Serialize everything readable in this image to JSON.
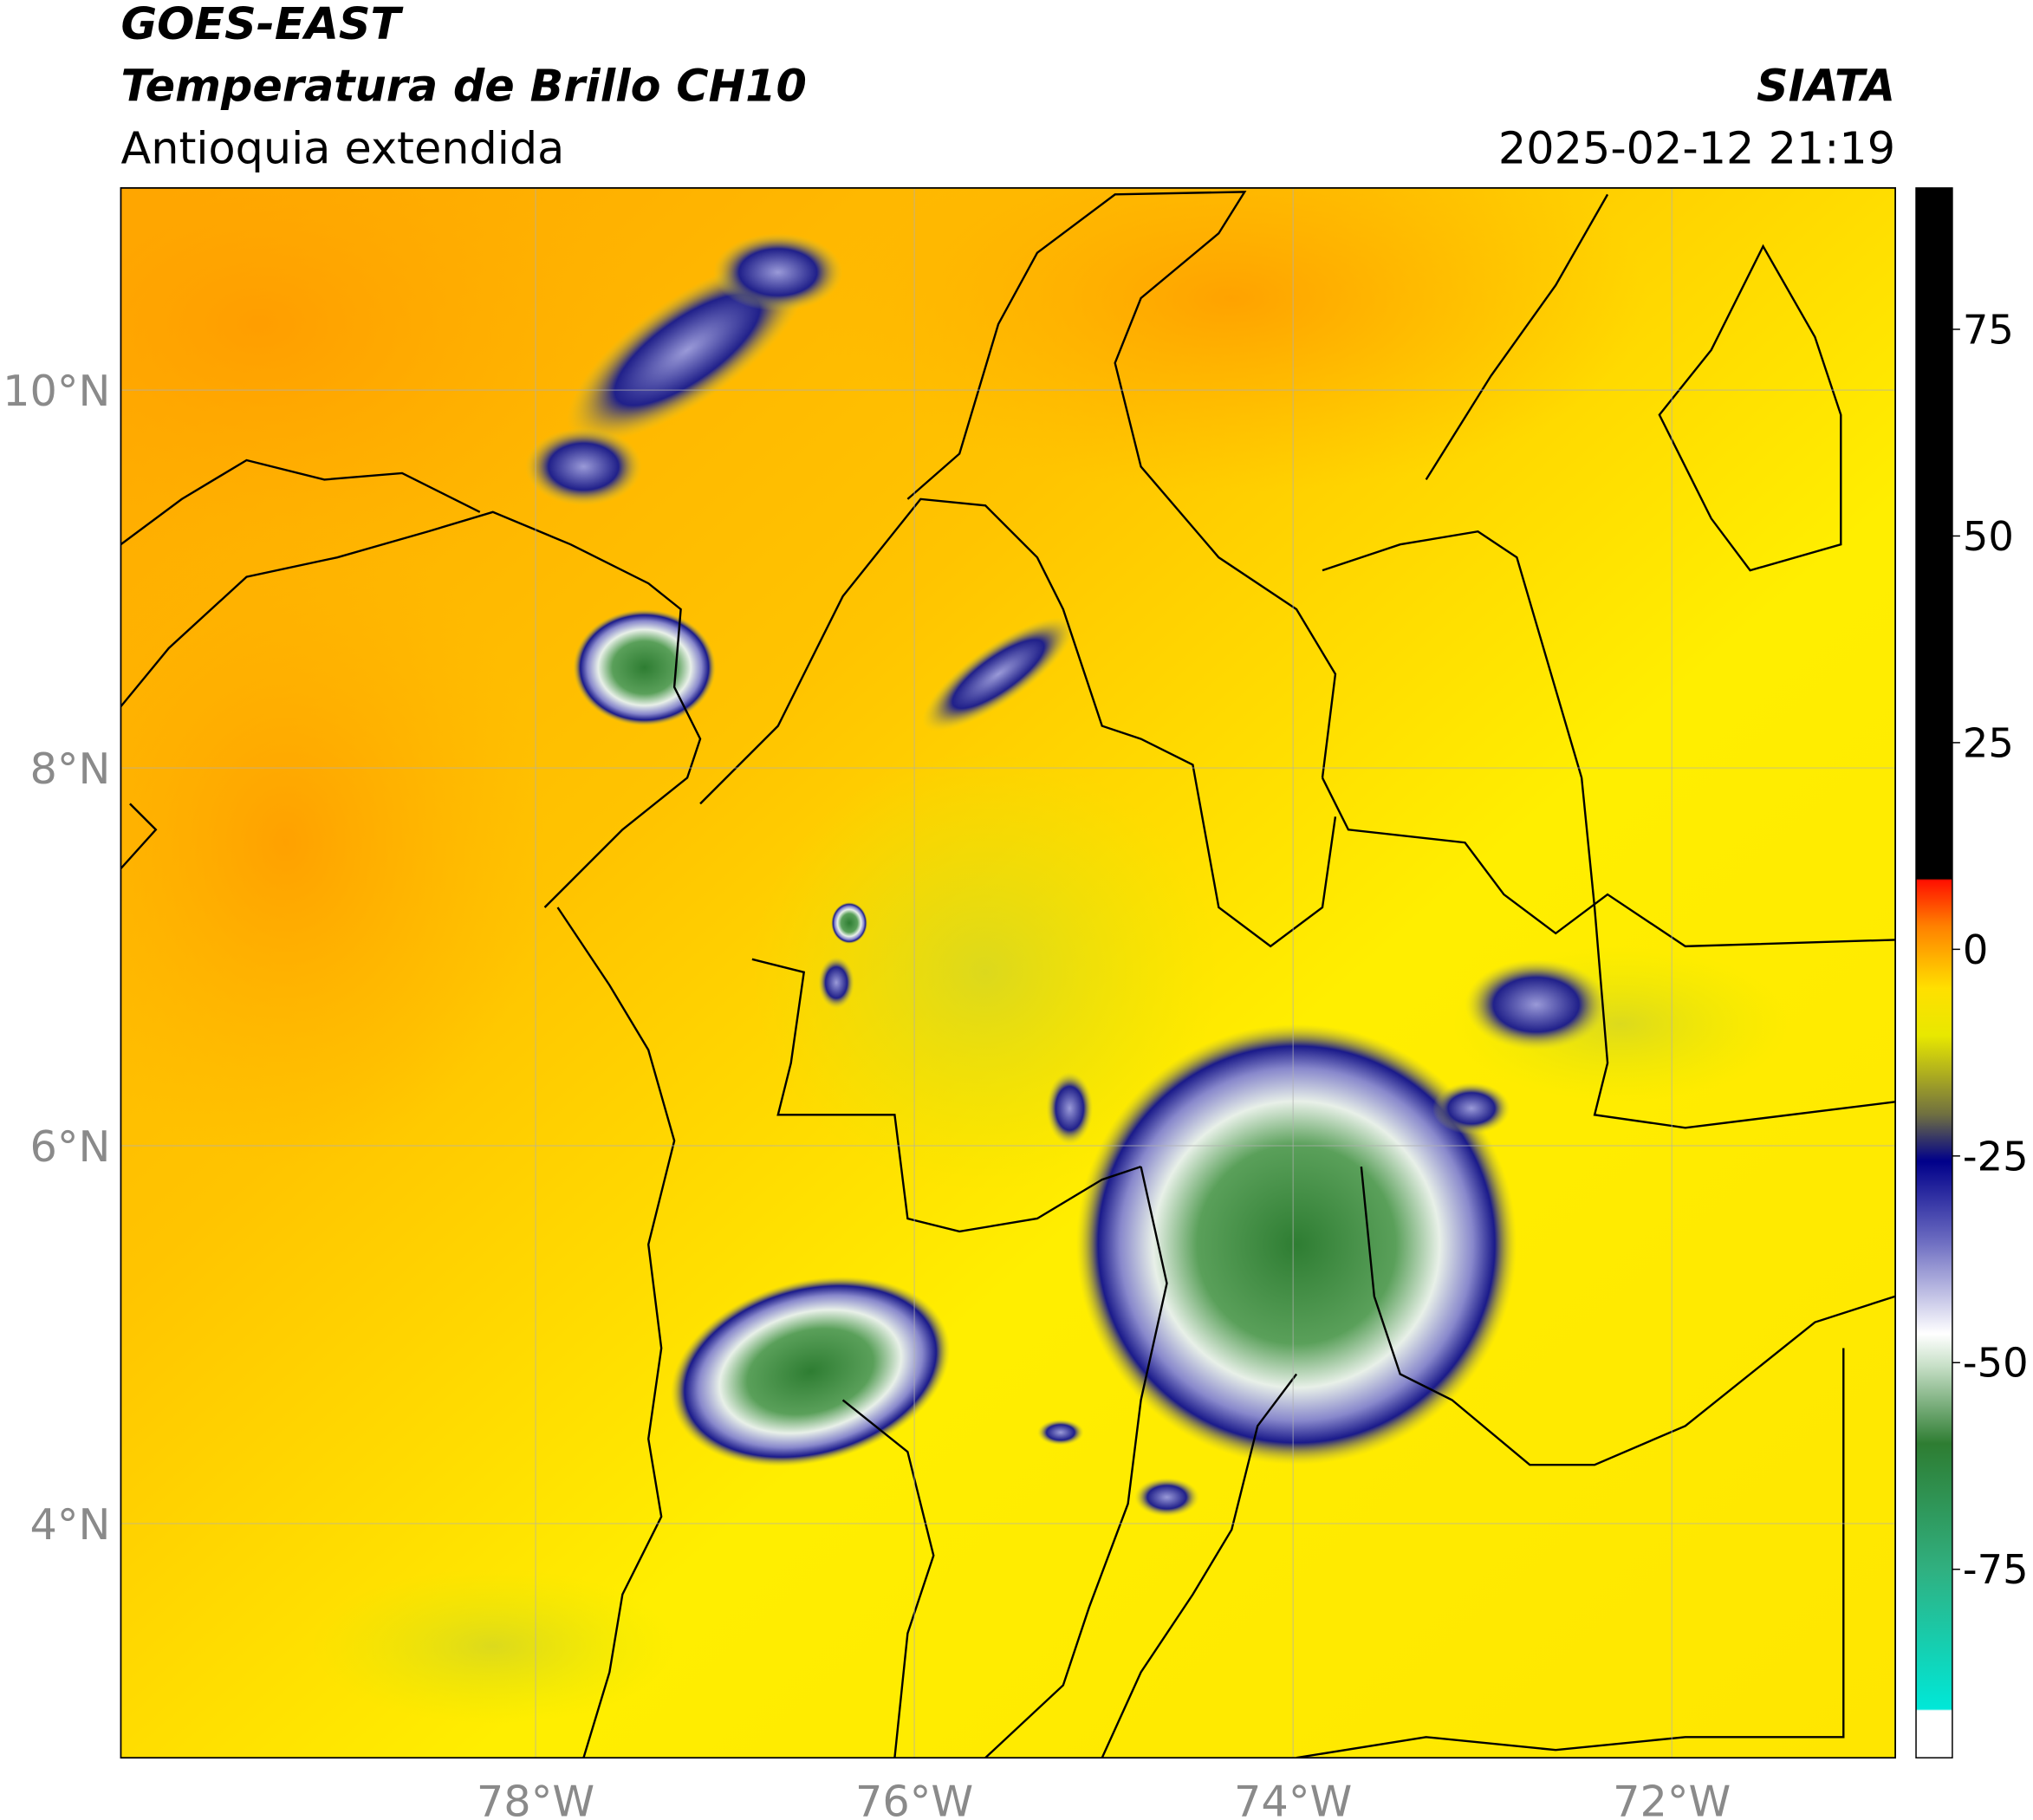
{
  "header": {
    "satellite": "GOES-EAST",
    "product": "Temperatura de Brillo CH10",
    "region": "Antioquia extendida",
    "source": "SIATA",
    "datetime": "2025-02-12 21:19"
  },
  "map": {
    "lon_range": [
      -80.19,
      -70.82
    ],
    "lat_range": [
      2.76,
      11.07
    ],
    "lon_ticks": [
      {
        "value": -78,
        "label": "78°W"
      },
      {
        "value": -76,
        "label": "76°W"
      },
      {
        "value": -74,
        "label": "74°W"
      },
      {
        "value": -72,
        "label": "72°W"
      }
    ],
    "lat_ticks": [
      {
        "value": 10,
        "label": "10°N"
      },
      {
        "value": 8,
        "label": "8°N"
      },
      {
        "value": 6,
        "label": "6°N"
      },
      {
        "value": 4,
        "label": "4°N"
      }
    ]
  },
  "colorbar": {
    "range": [
      -97.8,
      92.1
    ],
    "ticks": [
      75,
      50,
      25,
      0,
      -25,
      -50,
      -75
    ]
  }
}
